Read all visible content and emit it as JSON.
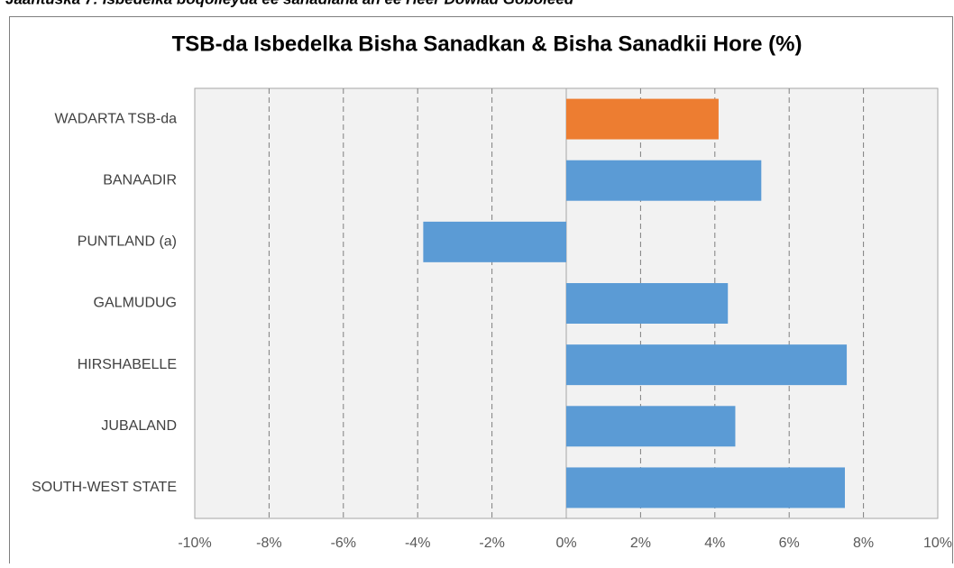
{
  "caption": "Jaantuska 7: Isbedelka boqolleyda ee sanadlaha ah ee Heer Dowlad Goboleed",
  "chart_data": {
    "type": "hbar",
    "title": "TSB-da Isbedelka Bisha Sanadkan & Bisha Sanadkii Hore (%)",
    "categories": [
      "WADARTA TSB-da",
      "BANAADIR",
      "PUNTLAND (a)",
      "GALMUDUG",
      "HIRSHABELLE",
      "JUBALAND",
      "SOUTH-WEST STATE"
    ],
    "values": [
      4.1,
      5.25,
      -3.85,
      4.35,
      7.55,
      4.55,
      7.5
    ],
    "colors": [
      "#ed7d31",
      "#5b9bd5",
      "#5b9bd5",
      "#5b9bd5",
      "#5b9bd5",
      "#5b9bd5",
      "#5b9bd5"
    ],
    "xlim": [
      -10,
      10
    ],
    "xticks": [
      {
        "value": -10,
        "label": "-10%"
      },
      {
        "value": -8,
        "label": "-8%"
      },
      {
        "value": -6,
        "label": "-6%"
      },
      {
        "value": -4,
        "label": "-4%"
      },
      {
        "value": -2,
        "label": "-2%"
      },
      {
        "value": 0,
        "label": "0%"
      },
      {
        "value": 2,
        "label": "2%"
      },
      {
        "value": 4,
        "label": "4%"
      },
      {
        "value": 6,
        "label": "6%"
      },
      {
        "value": 8,
        "label": "8%"
      },
      {
        "value": 10,
        "label": "10%"
      }
    ],
    "grid": true
  }
}
